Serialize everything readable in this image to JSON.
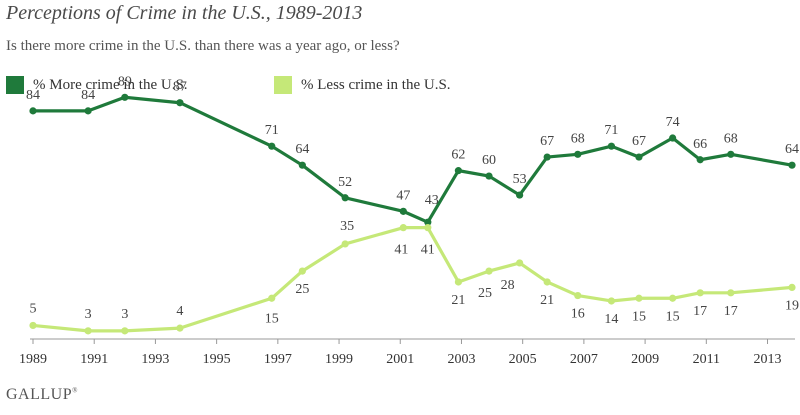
{
  "title": "Perceptions of Crime in the U.S., 1989-2013",
  "subtitle": "Is there more crime in the U.S. than there was a year ago, or less?",
  "legend": {
    "more_label": "% More crime in the U.S.",
    "less_label": "% Less crime in the U.S."
  },
  "footer": {
    "brand": "GALLUP",
    "mark": "®"
  },
  "colors": {
    "more": "#1f7a3b",
    "less": "#c5e878",
    "axis": "#999999"
  },
  "chart_data": {
    "type": "line",
    "title": "Perceptions of Crime in the U.S., 1989-2013",
    "xlabel": "",
    "ylabel": "",
    "xlim": [
      1989,
      2013.8
    ],
    "ylim": [
      0,
      95
    ],
    "x_ticks": [
      1989,
      1991,
      1993,
      1995,
      1997,
      1999,
      2001,
      2003,
      2005,
      2007,
      2009,
      2011,
      2013
    ],
    "grid": false,
    "legend_position": "top-left",
    "series": [
      {
        "name": "% More crime in the U.S.",
        "color": "#1f7a3b",
        "points": [
          {
            "x": 1989.0,
            "y": 84
          },
          {
            "x": 1990.8,
            "y": 84
          },
          {
            "x": 1992.0,
            "y": 89
          },
          {
            "x": 1993.8,
            "y": 87
          },
          {
            "x": 1996.8,
            "y": 71
          },
          {
            "x": 1997.8,
            "y": 64
          },
          {
            "x": 1999.2,
            "y": 52
          },
          {
            "x": 2001.1,
            "y": 47
          },
          {
            "x": 2001.9,
            "y": 43
          },
          {
            "x": 2002.9,
            "y": 62
          },
          {
            "x": 2003.9,
            "y": 60
          },
          {
            "x": 2004.9,
            "y": 53
          },
          {
            "x": 2005.8,
            "y": 67
          },
          {
            "x": 2006.8,
            "y": 68
          },
          {
            "x": 2007.9,
            "y": 71
          },
          {
            "x": 2008.8,
            "y": 67
          },
          {
            "x": 2009.9,
            "y": 74
          },
          {
            "x": 2010.8,
            "y": 66
          },
          {
            "x": 2011.8,
            "y": 68
          },
          {
            "x": 2013.8,
            "y": 64
          }
        ]
      },
      {
        "name": "% Less crime in the U.S.",
        "color": "#c5e878",
        "points": [
          {
            "x": 1989.0,
            "y": 5
          },
          {
            "x": 1990.8,
            "y": 3
          },
          {
            "x": 1992.0,
            "y": 3
          },
          {
            "x": 1993.8,
            "y": 4
          },
          {
            "x": 1996.8,
            "y": 15
          },
          {
            "x": 1997.8,
            "y": 25
          },
          {
            "x": 1999.2,
            "y": 35
          },
          {
            "x": 2001.1,
            "y": 41
          },
          {
            "x": 2001.9,
            "y": 41
          },
          {
            "x": 2002.9,
            "y": 21
          },
          {
            "x": 2003.9,
            "y": 25
          },
          {
            "x": 2004.9,
            "y": 28
          },
          {
            "x": 2005.8,
            "y": 21
          },
          {
            "x": 2006.8,
            "y": 16
          },
          {
            "x": 2007.9,
            "y": 14
          },
          {
            "x": 2008.8,
            "y": 15
          },
          {
            "x": 2009.9,
            "y": 15
          },
          {
            "x": 2010.8,
            "y": 17
          },
          {
            "x": 2011.8,
            "y": 17
          },
          {
            "x": 2013.8,
            "y": 19
          }
        ]
      }
    ]
  }
}
